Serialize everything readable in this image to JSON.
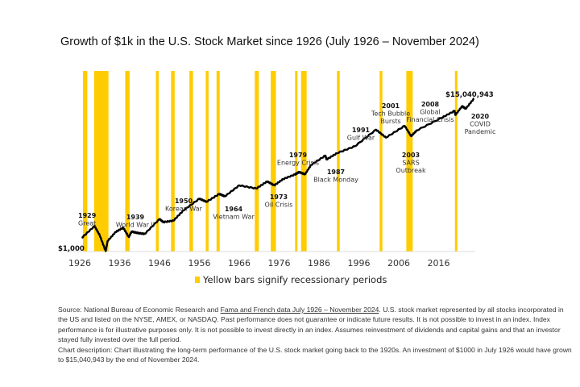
{
  "title": "Growth of $1k in the U.S. Stock Market since 1926 (July 1926 – November 2024)",
  "chart_data": {
    "type": "line",
    "title": "Growth of $1k in the U.S. Stock Market since 1926 (July 1926 – November 2024)",
    "y_scale": "log",
    "grid": false,
    "x_ticks": [
      "1926",
      "1936",
      "1946",
      "1956",
      "1966",
      "1976",
      "1986",
      "1996",
      "2006",
      "2016"
    ],
    "start_label": "$1,000",
    "end_label": "$15,040,943",
    "series": [
      {
        "color": "#000000",
        "x": [
          1926.5,
          1929.7,
          1931.0,
          1932.5,
          1933.0,
          1935.0,
          1936.9,
          1938.3,
          1939.0,
          1940.5,
          1942.3,
          1946.0,
          1947.0,
          1949.5,
          1952.0,
          1956.0,
          1957.8,
          1961.0,
          1962.4,
          1966.0,
          1970.3,
          1973.0,
          1974.8,
          1977.0,
          1980.0,
          1981.0,
          1982.5,
          1984.0,
          1987.6,
          1987.9,
          1990.5,
          1995.0,
          2000.3,
          2002.8,
          2007.5,
          2009.1,
          2010.5,
          2016.7,
          2020.0,
          2020.2,
          2021.9,
          2022.8,
          2024.9
        ],
        "y": [
          1000,
          2250,
          1200,
          400,
          805,
          1500,
          2020,
          1055,
          1540,
          1400,
          1310,
          3660,
          2950,
          3280,
          6630,
          14900,
          12000,
          20680,
          17580,
          37330,
          30060,
          49050,
          37330,
          57580,
          79500,
          93500,
          80000,
          152000,
          292000,
          222000,
          343000,
          555000,
          1740000,
          1010000,
          2270000,
          1110000,
          1650000,
          3900000,
          6400000,
          4800000,
          8800000,
          7400000,
          15040943
        ]
      }
    ],
    "recessions": [
      [
        1926.8,
        1927.9
      ],
      [
        1929.6,
        1933.2
      ],
      [
        1937.4,
        1938.5
      ],
      [
        1945.1,
        1945.8
      ],
      [
        1948.9,
        1949.8
      ],
      [
        1953.5,
        1954.4
      ],
      [
        1957.6,
        1958.3
      ],
      [
        1960.3,
        1961.1
      ],
      [
        1969.9,
        1970.9
      ],
      [
        1973.9,
        1975.2
      ],
      [
        1980.0,
        1980.5
      ],
      [
        1981.5,
        1982.9
      ],
      [
        1990.5,
        1991.2
      ],
      [
        2001.2,
        2001.9
      ],
      [
        2007.9,
        2009.5
      ],
      [
        2020.1,
        2020.4
      ]
    ],
    "recession_color": "#FFCC00",
    "annotations": [
      {
        "year": "1929",
        "lines": [
          "Great"
        ]
      },
      {
        "year": "1939",
        "lines": [
          "World War II"
        ]
      },
      {
        "year": "1950",
        "lines": [
          "Korean War"
        ]
      },
      {
        "year": "1964",
        "lines": [
          "Vietnam War"
        ]
      },
      {
        "year": "1973",
        "lines": [
          "Oil Crisis"
        ]
      },
      {
        "year": "1979",
        "lines": [
          "Energy Crisis"
        ]
      },
      {
        "year": "1987",
        "lines": [
          "Black Monday"
        ]
      },
      {
        "year": "1991",
        "lines": [
          "Gulf War"
        ]
      },
      {
        "year": "2001",
        "lines": [
          "Tech Bubble",
          "Bursts"
        ]
      },
      {
        "year": "2003",
        "lines": [
          "SARS",
          "Outbreak"
        ]
      },
      {
        "year": "2008",
        "lines": [
          "Global",
          "Financial Crisis"
        ]
      },
      {
        "year": "2020",
        "lines": [
          "COVID",
          "Pandemic"
        ]
      }
    ],
    "legend": "Yellow bars signify recessionary periods"
  },
  "notes": {
    "source_prefix": "Source: National Bureau of Economic Research and ",
    "source_link": "Fama and French data July 1926 – November 2024",
    "source_rest": ". U.S. stock market represented by all stocks incorporated in the US and listed on the NYSE, AMEX, or NASDAQ. Past performance does not guarantee or indicate future results. It is not possible to invest in an index. Index performance is for illustrative purposes only. It is not possible to invest directly in an index. Assumes reinvestment of dividends and capital gains and that an investor stayed fully invested over the full period.",
    "description": "Chart description: Chart illustrating the long-term performance of the U.S. stock market going back to the 1920s. An investment of $1000 in July 1926 would have grown to $15,040,943 by the end of November 2024."
  }
}
